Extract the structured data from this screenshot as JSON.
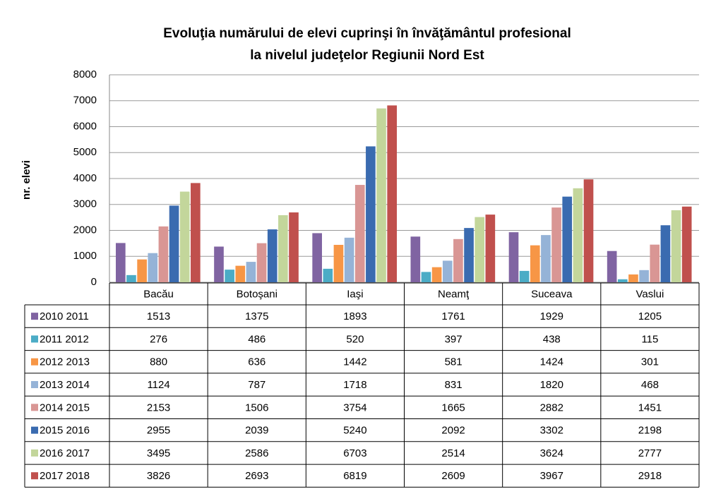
{
  "chart_data": {
    "type": "bar",
    "title": [
      "Evoluţia numărului de elevi cuprinşi în învăţământul profesional",
      "la nivelul judeţelor Regiunii Nord Est"
    ],
    "y_label": "nr. elevi",
    "categories": [
      "Bacău",
      "Botoşani",
      "Iaşi",
      "Neamţ",
      "Suceava",
      "Vaslui"
    ],
    "series": [
      {
        "name": "2010 2011",
        "color": "#8064a2",
        "values": [
          1513,
          1375,
          1893,
          1761,
          1929,
          1205
        ]
      },
      {
        "name": "2011 2012",
        "color": "#4bacc6",
        "values": [
          276,
          486,
          520,
          397,
          438,
          115
        ]
      },
      {
        "name": "2012 2013",
        "color": "#f79646",
        "values": [
          880,
          636,
          1442,
          581,
          1424,
          301
        ]
      },
      {
        "name": "2013 2014",
        "color": "#95b3d7",
        "values": [
          1124,
          787,
          1718,
          831,
          1820,
          468
        ]
      },
      {
        "name": "2014 2015",
        "color": "#d99694",
        "values": [
          2153,
          1506,
          3754,
          1665,
          2882,
          1451
        ]
      },
      {
        "name": "2015 2016",
        "color": "#3a6bb0",
        "values": [
          2955,
          2039,
          5240,
          2092,
          3302,
          2198
        ]
      },
      {
        "name": "2016 2017",
        "color": "#c3d69b",
        "values": [
          3495,
          2586,
          6703,
          2514,
          3624,
          2777
        ]
      },
      {
        "name": "2017 2018",
        "color": "#c0504d",
        "values": [
          3826,
          2693,
          6819,
          2609,
          3967,
          2918
        ]
      }
    ],
    "ylim": [
      0,
      8000
    ],
    "yticks": [
      0,
      1000,
      2000,
      3000,
      4000,
      5000,
      6000,
      7000,
      8000
    ],
    "grid": true
  }
}
